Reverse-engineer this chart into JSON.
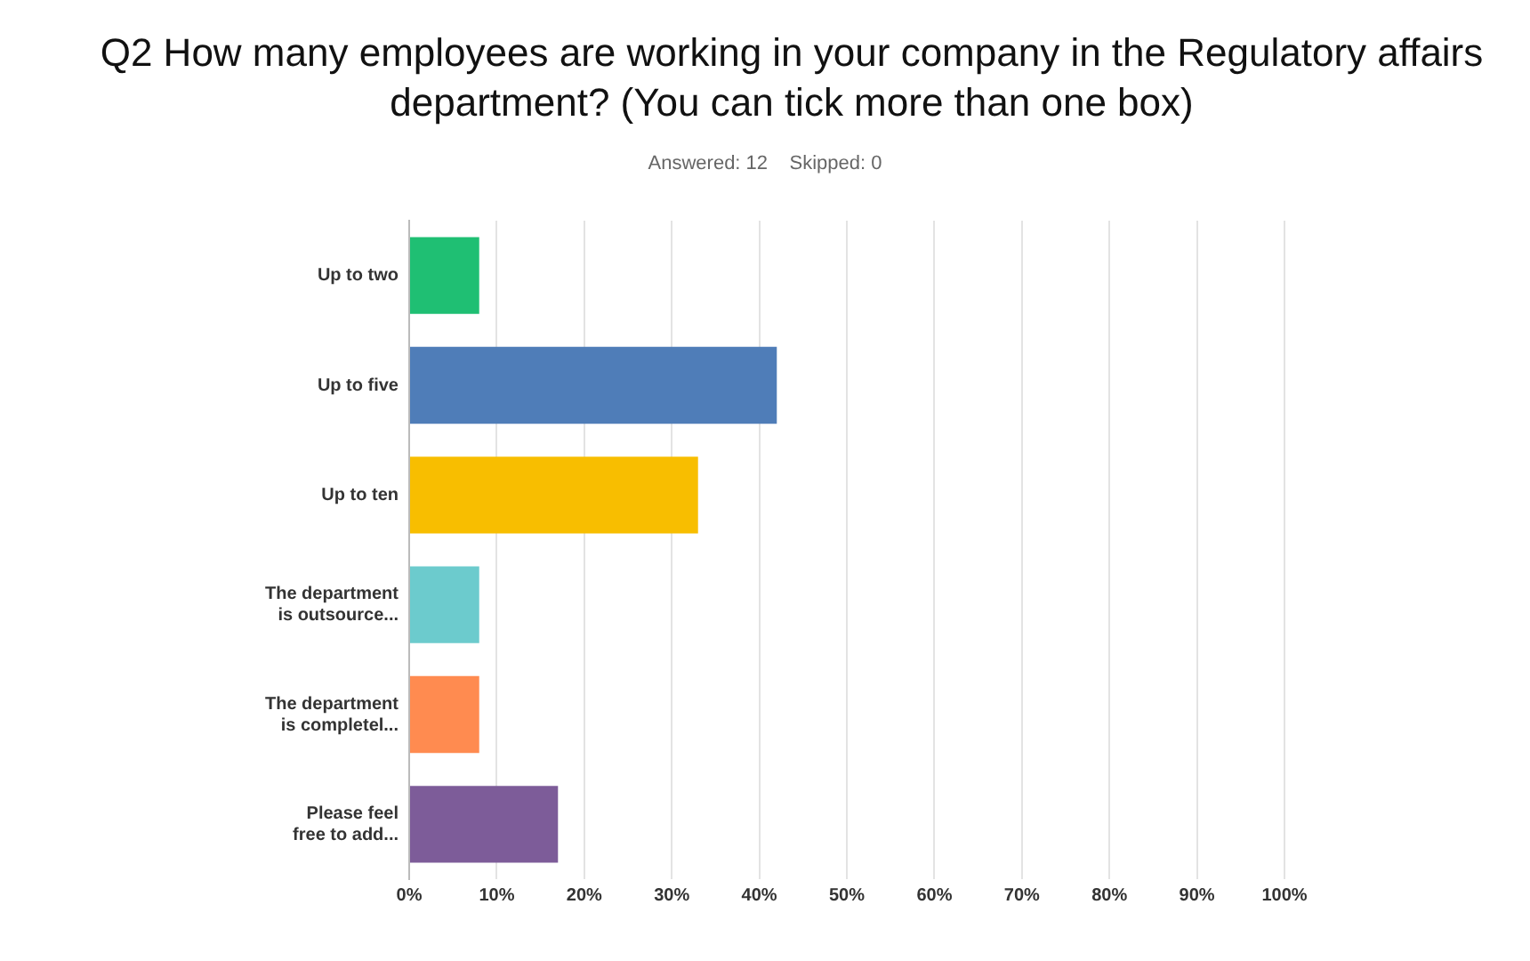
{
  "chart_data": {
    "type": "bar",
    "orientation": "horizontal",
    "title": "Q2 How many employees are working in your company in the Regulatory affairs department? (You can tick more than one box)",
    "subtitle": "Answered: 12    Skipped: 0",
    "categories": [
      "Up to two",
      "Up to five",
      "Up to ten",
      "The department is outsource...",
      "The department is completel...",
      "Please feel free to add..."
    ],
    "values": [
      8,
      42,
      33,
      8,
      8,
      17
    ],
    "colors": [
      "#1fbf73",
      "#4f7db8",
      "#f8be00",
      "#6ccbcd",
      "#ff8b50",
      "#7d5c99"
    ],
    "xlim": [
      0,
      100
    ],
    "xticks": [
      {
        "value": 0,
        "label": "0%"
      },
      {
        "value": 10,
        "label": "10%"
      },
      {
        "value": 20,
        "label": "20%"
      },
      {
        "value": 30,
        "label": "30%"
      },
      {
        "value": 40,
        "label": "40%"
      },
      {
        "value": 50,
        "label": "50%"
      },
      {
        "value": 60,
        "label": "60%"
      },
      {
        "value": 70,
        "label": "70%"
      },
      {
        "value": 80,
        "label": "80%"
      },
      {
        "value": 90,
        "label": "90%"
      },
      {
        "value": 100,
        "label": "100%"
      }
    ],
    "grid": "x",
    "legend": false
  }
}
